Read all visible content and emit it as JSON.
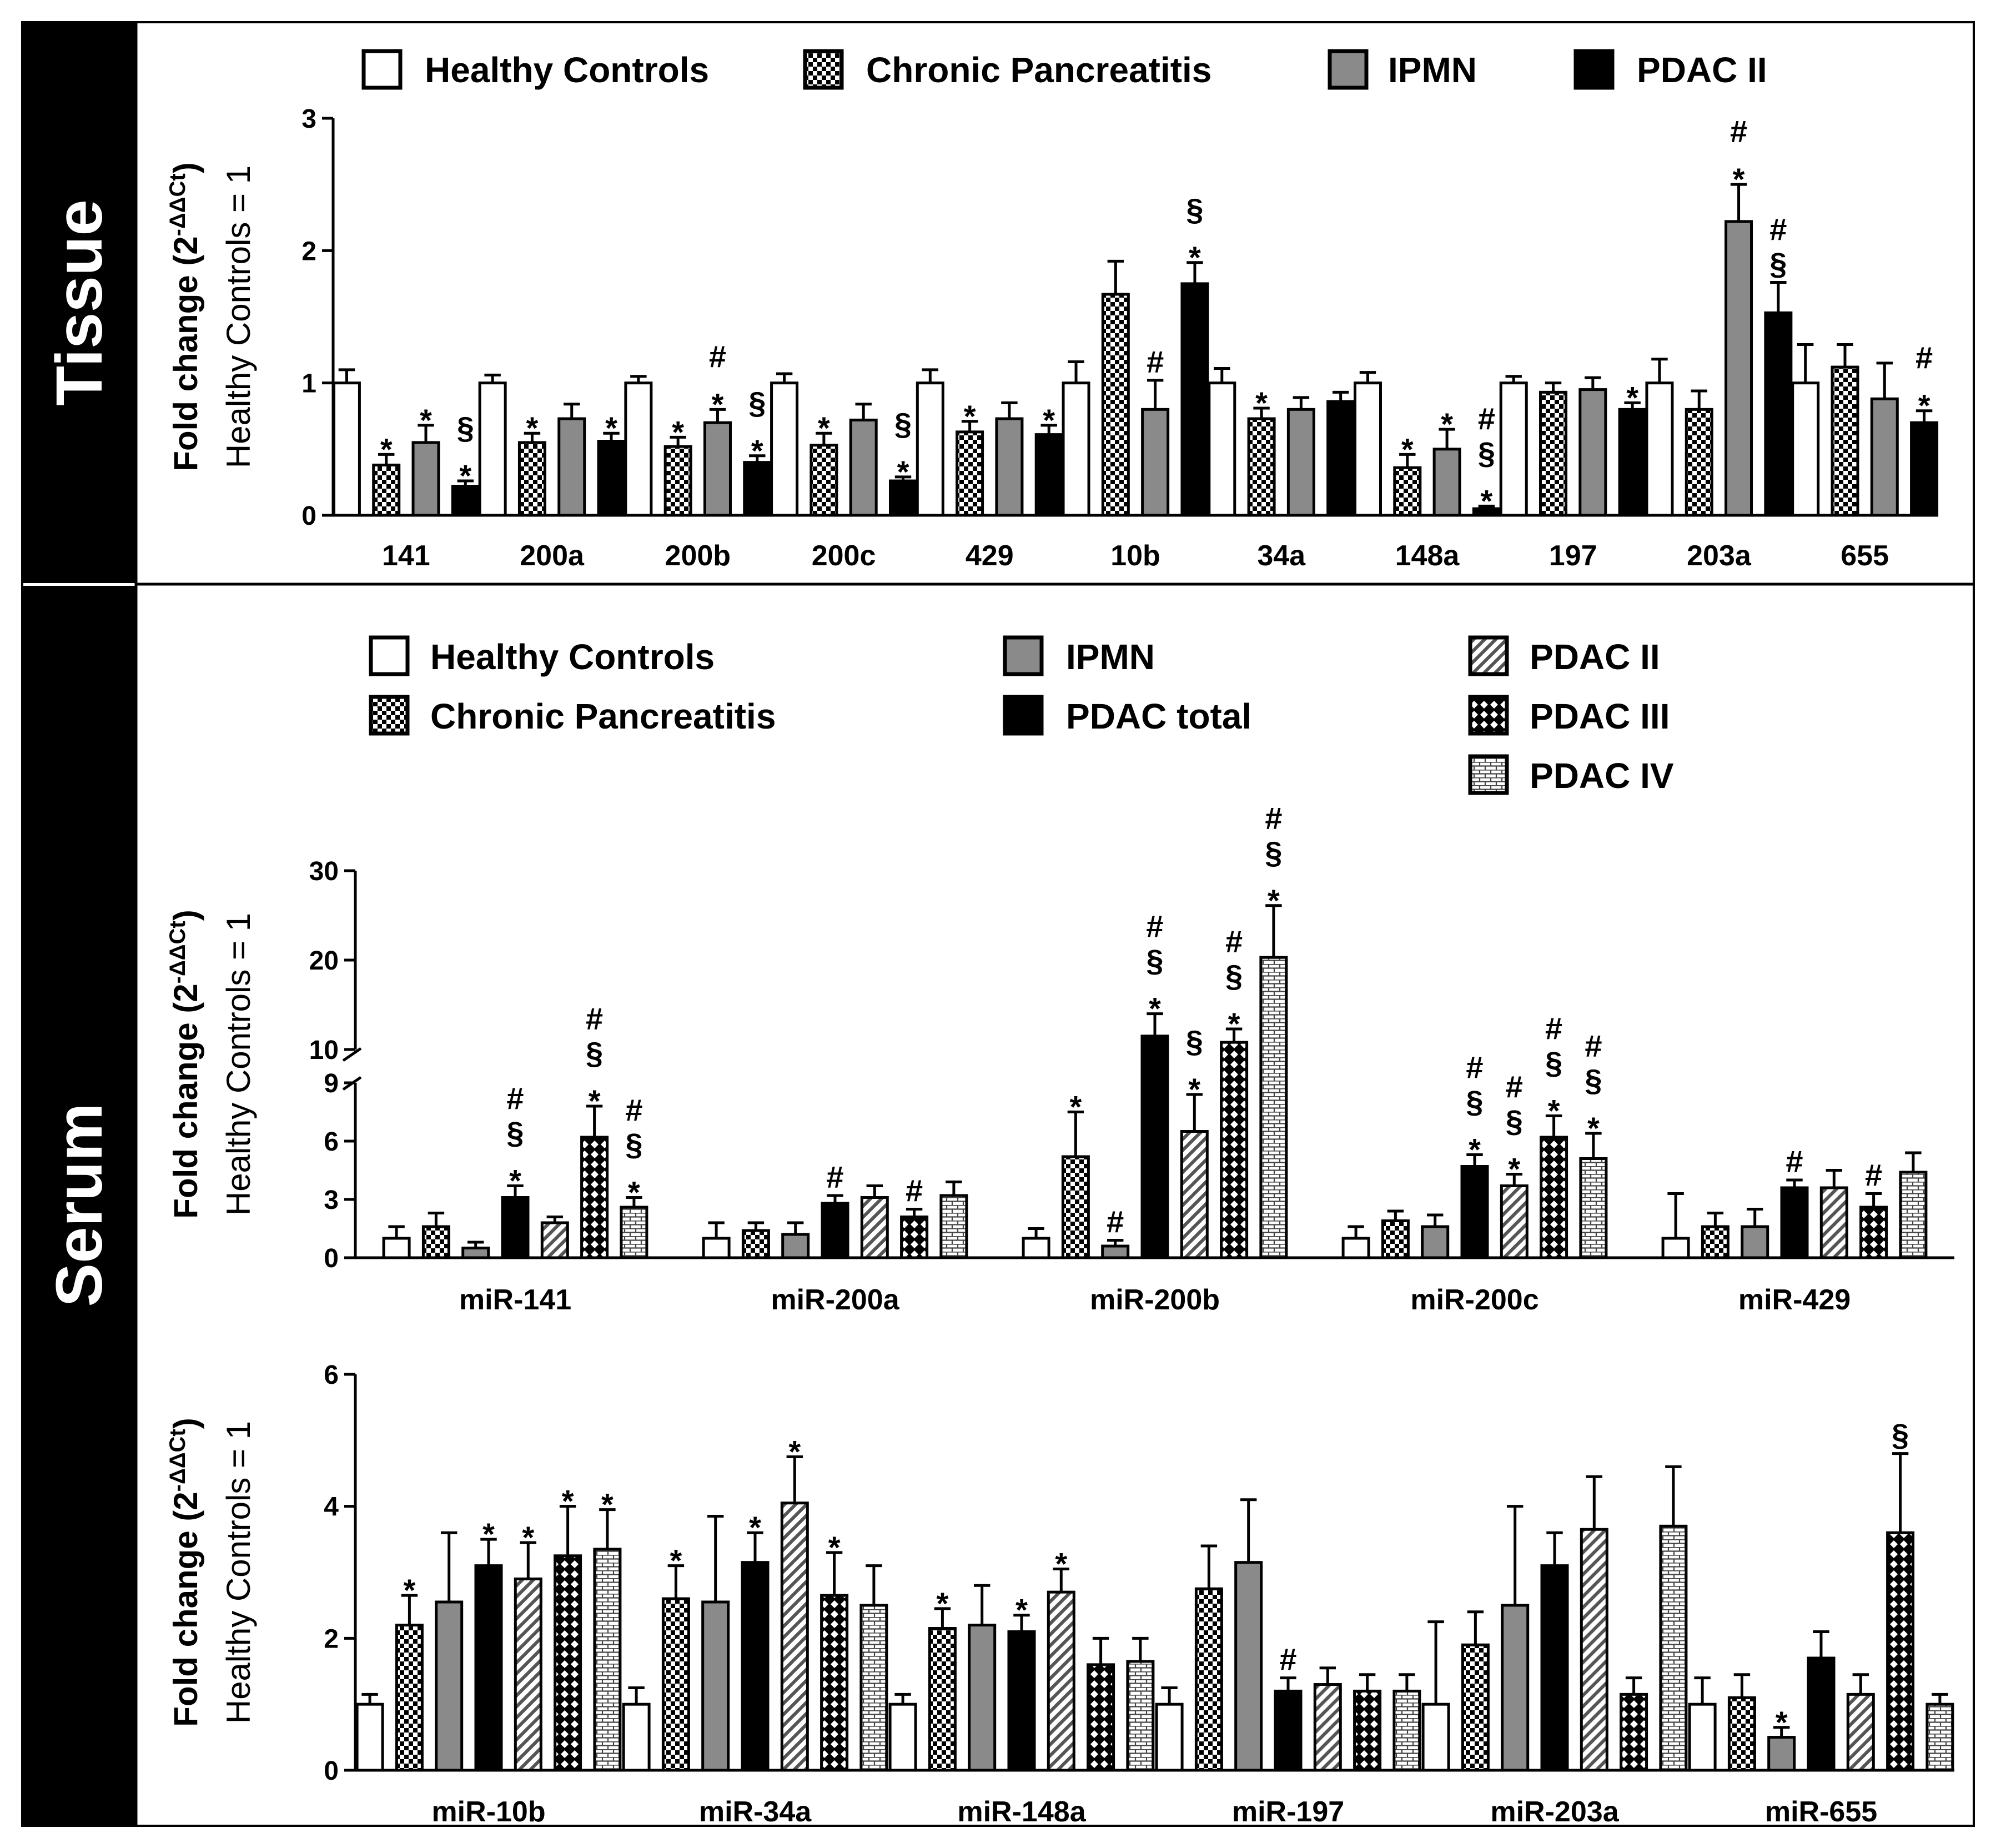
{
  "side_labels": {
    "tissue": "Tissue",
    "serum": "Serum"
  },
  "colors": {
    "healthy": "#ffffff",
    "ipmn": "#8a8a8a",
    "pdac_total": "#000000",
    "pdac_ii_tissue": "#000000",
    "outline": "#000000",
    "panel_bg": "#ffffff",
    "sidebar": "#000000"
  },
  "chart_data": [
    {
      "id": "tissue",
      "type": "bar",
      "ylabel_main": "Fold change (2",
      "ylabel_sup": "-ΔΔCt",
      "ylabel_close": ")",
      "ylabel_sub": "Healthy Controls = 1",
      "ylim": [
        0,
        3
      ],
      "yticks": [
        0,
        1,
        2,
        3
      ],
      "legend_position": "top",
      "series": [
        {
          "name": "Healthy Controls",
          "fill": "white"
        },
        {
          "name": "Chronic Pancreatitis",
          "fill": "check"
        },
        {
          "name": "IPMN",
          "fill": "gray"
        },
        {
          "name": "PDAC II",
          "fill": "black"
        }
      ],
      "categories": [
        "141",
        "200a",
        "200b",
        "200c",
        "429",
        "10b",
        "34a",
        "148a",
        "197",
        "203a",
        "655"
      ],
      "values": [
        [
          1.0,
          0.38,
          0.55,
          0.22
        ],
        [
          1.0,
          0.55,
          0.73,
          0.56
        ],
        [
          1.0,
          0.52,
          0.7,
          0.4
        ],
        [
          1.0,
          0.53,
          0.72,
          0.26
        ],
        [
          1.0,
          0.63,
          0.73,
          0.61
        ],
        [
          1.0,
          1.67,
          0.8,
          1.75
        ],
        [
          1.0,
          0.73,
          0.8,
          0.86
        ],
        [
          1.0,
          0.36,
          0.5,
          0.05
        ],
        [
          1.0,
          0.93,
          0.95,
          0.8
        ],
        [
          1.0,
          0.8,
          2.22,
          1.53
        ],
        [
          1.0,
          1.12,
          0.88,
          0.7
        ]
      ],
      "errors": [
        [
          0.1,
          0.08,
          0.13,
          0.04
        ],
        [
          0.06,
          0.07,
          0.11,
          0.06
        ],
        [
          0.05,
          0.07,
          0.1,
          0.05
        ],
        [
          0.07,
          0.09,
          0.12,
          0.03
        ],
        [
          0.1,
          0.08,
          0.12,
          0.07
        ],
        [
          0.16,
          0.25,
          0.22,
          0.16
        ],
        [
          0.11,
          0.08,
          0.09,
          0.07
        ],
        [
          0.08,
          0.1,
          0.15,
          0.02
        ],
        [
          0.05,
          0.07,
          0.09,
          0.05
        ],
        [
          0.18,
          0.14,
          0.28,
          0.23
        ],
        [
          0.29,
          0.17,
          0.27,
          0.09
        ]
      ],
      "annotations": [
        [
          [],
          [
            "*"
          ],
          [
            "*"
          ],
          [
            "*",
            "§"
          ]
        ],
        [
          [],
          [
            "*"
          ],
          [],
          [
            "*"
          ]
        ],
        [
          [],
          [
            "*"
          ],
          [
            "*",
            "#"
          ],
          [
            "*",
            "§"
          ]
        ],
        [
          [],
          [
            "*"
          ],
          [],
          [
            "*",
            "§"
          ]
        ],
        [
          [],
          [
            "*"
          ],
          [],
          [
            "*"
          ]
        ],
        [
          [],
          [],
          [
            "#"
          ],
          [
            "*",
            "§"
          ]
        ],
        [
          [],
          [
            "*"
          ],
          [],
          []
        ],
        [
          [],
          [
            "*"
          ],
          [
            "*"
          ],
          [
            "*",
            "§",
            "#"
          ]
        ],
        [
          [],
          [],
          [],
          [
            "*"
          ]
        ],
        [
          [],
          [],
          [
            "*",
            "#"
          ],
          [
            "§",
            "#"
          ]
        ],
        [
          [],
          [],
          [],
          [
            "*",
            "#"
          ]
        ]
      ]
    },
    {
      "id": "serum-top",
      "type": "bar",
      "ylabel_main": "Fold change (2",
      "ylabel_sup": "-ΔΔCt",
      "ylabel_close": ")",
      "ylabel_sub": "Healthy Controls = 1",
      "ylim": [
        0,
        30
      ],
      "axis_break": {
        "lower": [
          0,
          9
        ],
        "upper": [
          10,
          30
        ]
      },
      "yticks": [
        0,
        3,
        6,
        9,
        10,
        20,
        30
      ],
      "legend_position": "top",
      "series": [
        {
          "name": "Healthy Controls",
          "fill": "white"
        },
        {
          "name": "Chronic Pancreatitis",
          "fill": "check"
        },
        {
          "name": "IPMN",
          "fill": "gray"
        },
        {
          "name": "PDAC total",
          "fill": "black"
        },
        {
          "name": "PDAC II",
          "fill": "diagonal"
        },
        {
          "name": "PDAC III",
          "fill": "diamond"
        },
        {
          "name": "PDAC IV",
          "fill": "brick"
        }
      ],
      "categories": [
        "miR-141",
        "miR-200a",
        "miR-200b",
        "miR-200c",
        "miR-429"
      ],
      "values": [
        [
          1.0,
          1.6,
          0.5,
          3.1,
          1.8,
          6.2,
          2.6
        ],
        [
          1.0,
          1.4,
          1.2,
          2.8,
          3.1,
          2.1,
          3.2
        ],
        [
          1.0,
          5.2,
          0.6,
          11.5,
          6.5,
          10.8,
          20.3
        ],
        [
          1.0,
          1.9,
          1.6,
          4.7,
          3.7,
          6.2,
          5.1
        ],
        [
          1.0,
          1.6,
          1.6,
          3.6,
          3.6,
          2.6,
          4.4
        ]
      ],
      "errors": [
        [
          0.6,
          0.7,
          0.3,
          0.6,
          0.3,
          1.6,
          0.5
        ],
        [
          0.8,
          0.4,
          0.6,
          0.4,
          0.6,
          0.4,
          0.7
        ],
        [
          0.5,
          2.3,
          0.3,
          2.5,
          1.9,
          1.5,
          5.8
        ],
        [
          0.6,
          0.5,
          0.6,
          0.6,
          0.6,
          1.1,
          1.3
        ],
        [
          2.3,
          0.7,
          0.9,
          0.4,
          0.9,
          0.7,
          1.0
        ]
      ],
      "annotations": [
        [
          [],
          [],
          [],
          [
            "*",
            "§",
            "#"
          ],
          [],
          [
            "*",
            "§",
            "#"
          ],
          [
            "*",
            "§",
            "#"
          ]
        ],
        [
          [],
          [],
          [],
          [
            "#"
          ],
          [],
          [
            "#"
          ],
          []
        ],
        [
          [],
          [
            "*"
          ],
          [
            "#"
          ],
          [
            "*",
            "§",
            "#"
          ],
          [
            "*",
            "§"
          ],
          [
            "*",
            "§",
            "#"
          ],
          [
            "*",
            "§",
            "#"
          ]
        ],
        [
          [],
          [],
          [],
          [
            "*",
            "§",
            "#"
          ],
          [
            "*",
            "§",
            "#"
          ],
          [
            "*",
            "§",
            "#"
          ],
          [
            "*",
            "§",
            "#"
          ]
        ],
        [
          [],
          [],
          [],
          [
            "#"
          ],
          [],
          [
            "#"
          ],
          []
        ]
      ]
    },
    {
      "id": "serum-bottom",
      "type": "bar",
      "ylabel_main": "Fold change (2",
      "ylabel_sup": "-ΔΔCt",
      "ylabel_close": ")",
      "ylabel_sub": "Healthy Controls = 1",
      "ylim": [
        0,
        6
      ],
      "yticks": [
        0,
        2,
        4,
        6
      ],
      "series_ref": "serum-top",
      "categories": [
        "miR-10b",
        "miR-34a",
        "miR-148a",
        "miR-197",
        "miR-203a",
        "miR-655"
      ],
      "values": [
        [
          1.0,
          2.2,
          2.55,
          3.1,
          2.9,
          3.25,
          3.35
        ],
        [
          1.0,
          2.6,
          2.55,
          3.15,
          4.05,
          2.65,
          2.5
        ],
        [
          1.0,
          2.15,
          2.2,
          2.1,
          2.7,
          1.6,
          1.65
        ],
        [
          1.0,
          2.75,
          3.15,
          1.2,
          1.3,
          1.2,
          1.2
        ],
        [
          1.0,
          1.9,
          2.5,
          3.1,
          3.65,
          1.15,
          3.7
        ],
        [
          1.0,
          1.1,
          0.5,
          1.7,
          1.15,
          3.6,
          1.0
        ]
      ],
      "errors": [
        [
          0.15,
          0.45,
          1.05,
          0.4,
          0.55,
          0.75,
          0.6
        ],
        [
          0.25,
          0.5,
          1.3,
          0.45,
          0.7,
          0.65,
          0.6
        ],
        [
          0.15,
          0.3,
          0.6,
          0.25,
          0.35,
          0.4,
          0.35
        ],
        [
          0.25,
          0.65,
          0.95,
          0.2,
          0.25,
          0.25,
          0.25
        ],
        [
          1.25,
          0.5,
          1.5,
          0.5,
          0.8,
          0.25,
          0.9
        ],
        [
          0.4,
          0.35,
          0.15,
          0.4,
          0.3,
          1.2,
          0.15
        ]
      ],
      "annotations": [
        [
          [],
          [
            "*"
          ],
          [],
          [
            "*"
          ],
          [
            "*"
          ],
          [
            "*"
          ],
          [
            "*"
          ]
        ],
        [
          [],
          [
            "*"
          ],
          [],
          [
            "*"
          ],
          [
            "*"
          ],
          [
            "*"
          ],
          []
        ],
        [
          [],
          [
            "*"
          ],
          [],
          [
            "*"
          ],
          [
            "*"
          ],
          [],
          []
        ],
        [
          [],
          [],
          [],
          [
            "#"
          ],
          [],
          [],
          []
        ],
        [
          [],
          [],
          [],
          [],
          [],
          [],
          []
        ],
        [
          [],
          [],
          [
            "*"
          ],
          [],
          [],
          [
            "§"
          ],
          []
        ]
      ]
    }
  ]
}
